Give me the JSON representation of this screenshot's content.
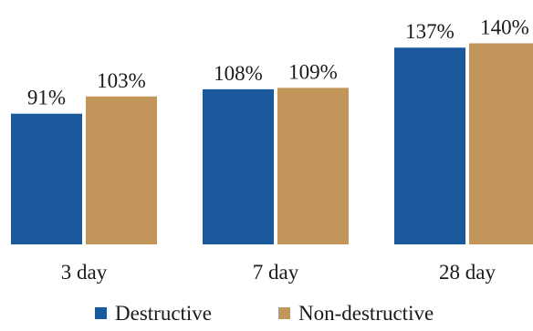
{
  "chart_data": {
    "type": "bar",
    "categories": [
      "3 day",
      "7 day",
      "28 day"
    ],
    "series": [
      {
        "name": "Destructive",
        "values": [
          91,
          108,
          137
        ],
        "labels": [
          "91%",
          "108%",
          "137%"
        ],
        "color": "#1a5a9c"
      },
      {
        "name": "Non-destructive",
        "values": [
          103,
          109,
          140
        ],
        "labels": [
          "103%",
          "109%",
          "140%"
        ],
        "color": "#c2955a"
      }
    ],
    "unit": "%",
    "ylim": [
      0,
      160
    ],
    "title": "",
    "xlabel": "",
    "ylabel": "",
    "grid": false,
    "legend": "bottom"
  }
}
